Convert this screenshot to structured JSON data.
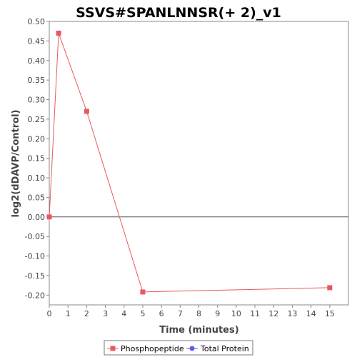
{
  "chart_data": {
    "type": "line",
    "title": "SSVS#SPANLNNSR(+ 2)_v1",
    "xlabel": "Time (minutes)",
    "ylabel": "log2(dDAVP/Control)",
    "xlim": [
      0,
      16
    ],
    "ylim": [
      -0.225,
      0.5
    ],
    "xticks": [
      0,
      1,
      2,
      3,
      4,
      5,
      6,
      7,
      8,
      9,
      10,
      11,
      12,
      13,
      14,
      15
    ],
    "yticks": [
      -0.2,
      -0.15,
      -0.1,
      -0.05,
      0.0,
      0.05,
      0.1,
      0.15,
      0.2,
      0.25,
      0.3,
      0.35,
      0.4,
      0.45,
      0.5
    ],
    "ytick_labels": [
      "-0.20",
      "-0.15",
      "-0.10",
      "-0.05",
      "0.00",
      "0.05",
      "0.10",
      "0.15",
      "0.20",
      "0.25",
      "0.30",
      "0.35",
      "0.40",
      "0.45",
      "0.50"
    ],
    "grid": false,
    "zero_line": true,
    "legend_position": "bottom",
    "series": [
      {
        "name": "Phosphopeptide",
        "color": "#e8595f",
        "marker": "square",
        "x": [
          0,
          0.5,
          2,
          5,
          15
        ],
        "y": [
          0.0,
          0.47,
          0.27,
          -0.192,
          -0.181
        ]
      },
      {
        "name": "Total Protein",
        "color": "#5b5bf5",
        "marker": "circle",
        "x": [],
        "y": []
      }
    ]
  }
}
